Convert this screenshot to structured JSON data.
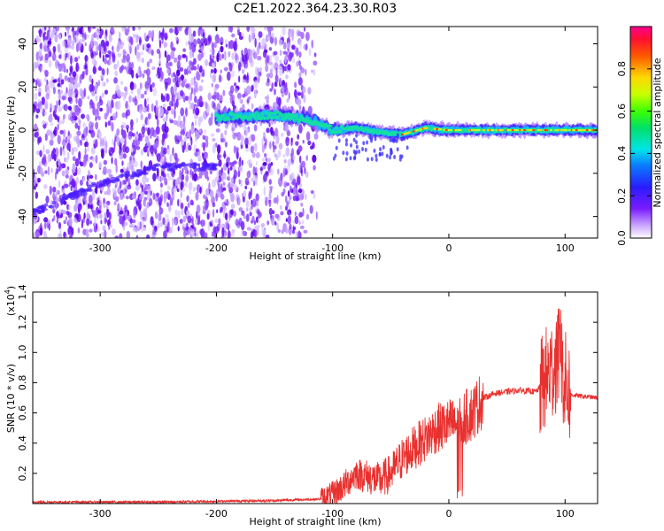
{
  "title": "C2E1.2022.364.23.30.R03",
  "chart_data": [
    {
      "type": "heatmap",
      "xlabel": "Height of straight line (km)",
      "ylabel": "Frequency (Hz)",
      "xlim": [
        -358,
        128
      ],
      "ylim": [
        -50,
        48
      ],
      "x_ticks": [
        -300,
        -200,
        -100,
        0,
        100
      ],
      "y_ticks": [
        -40,
        -20,
        0,
        20,
        40
      ],
      "colorbar": {
        "label": "Normalized spectral amplitude",
        "range": [
          0,
          1
        ],
        "ticks": [
          "0.0",
          "0.2",
          "0.4",
          "0.6",
          "0.8"
        ],
        "tick_values": [
          0,
          0.2,
          0.4,
          0.6,
          0.8
        ]
      },
      "band_center_hz": [
        [
          -200,
          6
        ],
        [
          -150,
          7
        ],
        [
          -120,
          5
        ],
        [
          -100,
          0
        ],
        [
          -80,
          1
        ],
        [
          -60,
          -1
        ],
        [
          -40,
          -2
        ],
        [
          -20,
          1
        ],
        [
          0,
          0
        ],
        [
          50,
          0
        ],
        [
          100,
          0
        ],
        [
          128,
          0
        ]
      ],
      "weak_trace_hz": [
        [
          -358,
          -38
        ],
        [
          -300,
          -25
        ],
        [
          -250,
          -17
        ],
        [
          -200,
          -17
        ]
      ]
    },
    {
      "type": "line",
      "xlabel": "Height of straight line (km)",
      "ylabel": "SNR (10 * v/v)",
      "y_multiplier": "(x10",
      "y_multiplier_exp": "4",
      "y_multiplier_close": ")",
      "xlim": [
        -358,
        128
      ],
      "ylim": [
        0,
        1.4
      ],
      "x_ticks": [
        -300,
        -200,
        -100,
        0,
        100
      ],
      "y_ticks": [
        "0.2",
        "0.4",
        "0.6",
        "0.8",
        "1.0",
        "1.2",
        "1.4"
      ],
      "y_tick_values": [
        0.2,
        0.4,
        0.6,
        0.8,
        1.0,
        1.2,
        1.4
      ],
      "series": [
        {
          "color": "#e8312f",
          "points": [
            [
              -358,
              0.01
            ],
            [
              -250,
              0.01
            ],
            [
              -150,
              0.02
            ],
            [
              -110,
              0.03
            ],
            [
              -100,
              0.06
            ],
            [
              -90,
              0.12
            ],
            [
              -80,
              0.2
            ],
            [
              -70,
              0.18
            ],
            [
              -60,
              0.15
            ],
            [
              -50,
              0.2
            ],
            [
              -40,
              0.3
            ],
            [
              -30,
              0.37
            ],
            [
              -20,
              0.43
            ],
            [
              -10,
              0.5
            ],
            [
              0,
              0.52
            ],
            [
              10,
              0.55
            ],
            [
              20,
              0.6
            ],
            [
              30,
              0.7
            ],
            [
              40,
              0.73
            ],
            [
              60,
              0.75
            ],
            [
              75,
              0.74
            ],
            [
              80,
              0.78
            ],
            [
              85,
              0.85
            ],
            [
              90,
              0.9
            ],
            [
              95,
              1.0
            ],
            [
              100,
              0.8
            ],
            [
              105,
              0.72
            ],
            [
              115,
              0.71
            ],
            [
              128,
              0.7
            ]
          ]
        }
      ]
    }
  ]
}
